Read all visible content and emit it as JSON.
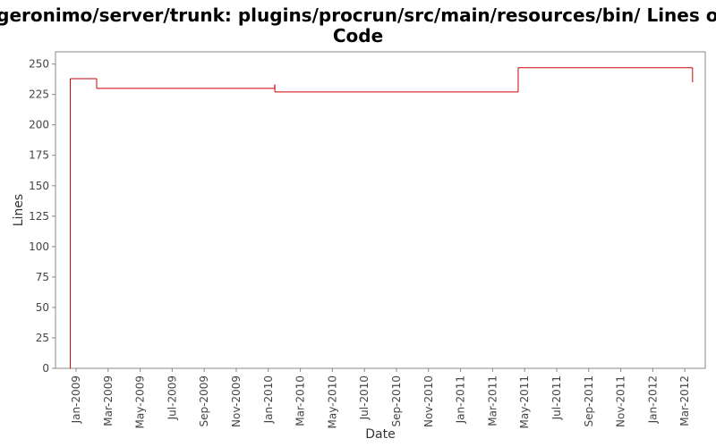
{
  "chart_data": {
    "type": "line",
    "step": true,
    "title": [
      "/geronimo/server/trunk: plugins/procrun/src/main/resources/bin/ Lines of",
      "Code"
    ],
    "xlabel": "Date",
    "ylabel": "Lines",
    "color": "#cc0000",
    "x": [
      2008.967,
      2008.97,
      2009.107,
      2010.033,
      2010.034,
      2011.3,
      2012.207
    ],
    "values": [
      0,
      238,
      230,
      233,
      227,
      247,
      235
    ],
    "xlim": [
      2008.893,
      2012.273
    ],
    "xticks": [
      {
        "value": 2009.0,
        "label": "Jan-2009"
      },
      {
        "value": 2009.1667,
        "label": "Mar-2009"
      },
      {
        "value": 2009.3333,
        "label": "May-2009"
      },
      {
        "value": 2009.5,
        "label": "Jul-2009"
      },
      {
        "value": 2009.6667,
        "label": "Sep-2009"
      },
      {
        "value": 2009.8333,
        "label": "Nov-2009"
      },
      {
        "value": 2010.0,
        "label": "Jan-2010"
      },
      {
        "value": 2010.1667,
        "label": "Mar-2010"
      },
      {
        "value": 2010.3333,
        "label": "May-2010"
      },
      {
        "value": 2010.5,
        "label": "Jul-2010"
      },
      {
        "value": 2010.6667,
        "label": "Sep-2010"
      },
      {
        "value": 2010.8333,
        "label": "Nov-2010"
      },
      {
        "value": 2011.0,
        "label": "Jan-2011"
      },
      {
        "value": 2011.1667,
        "label": "Mar-2011"
      },
      {
        "value": 2011.3333,
        "label": "May-2011"
      },
      {
        "value": 2011.5,
        "label": "Jul-2011"
      },
      {
        "value": 2011.6667,
        "label": "Sep-2011"
      },
      {
        "value": 2011.8333,
        "label": "Nov-2011"
      },
      {
        "value": 2012.0,
        "label": "Jan-2012"
      },
      {
        "value": 2012.1667,
        "label": "Mar-2012"
      }
    ],
    "ylim": [
      0,
      260
    ],
    "yticks": [
      0,
      25,
      50,
      75,
      100,
      125,
      150,
      175,
      200,
      225,
      250
    ],
    "grid": false
  }
}
